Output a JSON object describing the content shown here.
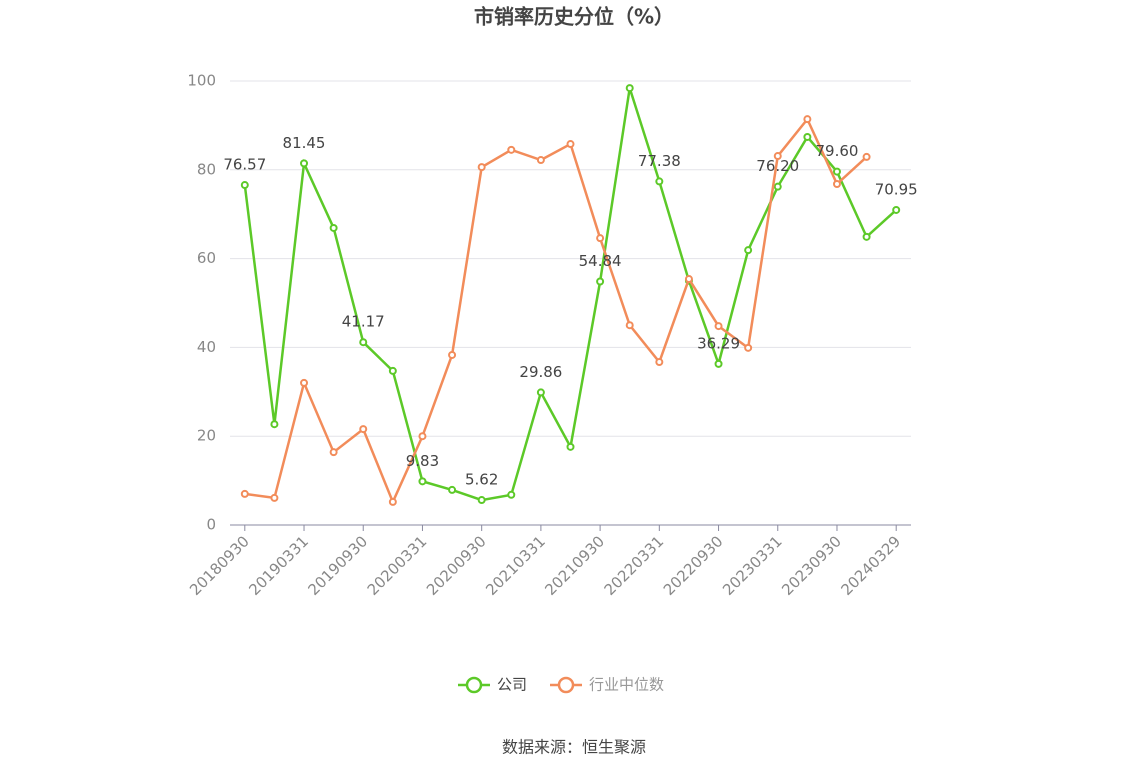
{
  "chart_data": {
    "type": "line",
    "title": "市销率历史分位（%）",
    "categories": [
      "20180930",
      null,
      "20190331",
      null,
      "20190930",
      null,
      "20200331",
      null,
      "20200930",
      null,
      "20210331",
      null,
      "20210930",
      null,
      "20220331",
      null,
      "20220930",
      null,
      "20230331",
      null,
      "20230930",
      null,
      "20240329"
    ],
    "series": [
      {
        "name": "公司",
        "color": "#5cc928",
        "values": [
          76.57,
          22.7,
          81.45,
          66.9,
          41.17,
          34.7,
          9.83,
          7.9,
          5.62,
          6.8,
          29.86,
          17.6,
          54.84,
          98.4,
          77.38,
          55.0,
          36.29,
          61.9,
          76.2,
          87.4,
          79.6,
          64.9,
          70.95
        ],
        "value_labels": [
          "76.57",
          null,
          "81.45",
          null,
          "41.17",
          null,
          "9.83",
          null,
          "5.62",
          null,
          "29.86",
          null,
          "54.84",
          null,
          "77.38",
          null,
          "36.29",
          null,
          "76.20",
          null,
          "79.60",
          null,
          "70.95"
        ]
      },
      {
        "name": "行业中位数",
        "color": "#f28c5a",
        "values": [
          7.0,
          6.1,
          32.0,
          16.4,
          21.6,
          5.2,
          20.0,
          38.3,
          80.6,
          84.5,
          82.2,
          85.8,
          64.6,
          45.0,
          36.7,
          55.4,
          44.8,
          39.9,
          83.1,
          91.4,
          76.8,
          82.9,
          null
        ]
      }
    ],
    "ylim": [
      0,
      100
    ],
    "yticks": [
      0,
      20,
      40,
      60,
      80,
      100
    ],
    "grid": true,
    "legend": "bottom",
    "source": "数据来源：恒生聚源"
  }
}
